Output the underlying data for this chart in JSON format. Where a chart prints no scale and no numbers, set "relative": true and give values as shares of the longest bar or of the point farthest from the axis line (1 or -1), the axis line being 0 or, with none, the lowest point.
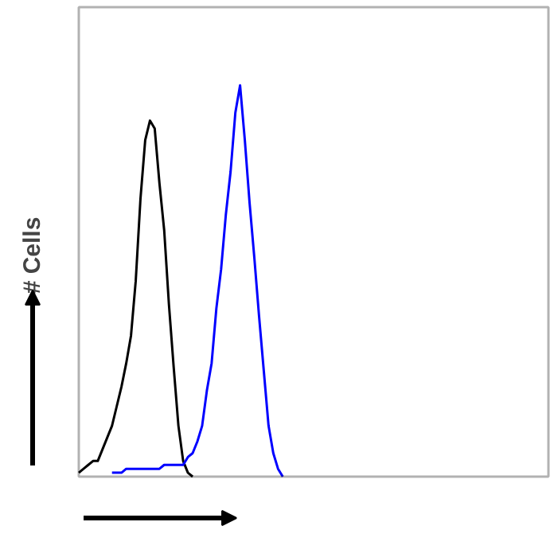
{
  "chart_data": {
    "type": "line",
    "relative": true,
    "ylabel": "# Cells",
    "grid": false,
    "marker": "none",
    "line_style": "solid",
    "categories": [
      null,
      null,
      null,
      null,
      null,
      null,
      null,
      null,
      null,
      null,
      null,
      null,
      null,
      null,
      null,
      null,
      null,
      null,
      null,
      null,
      null,
      null,
      null,
      null,
      null,
      null,
      null,
      null,
      null,
      null,
      null,
      null,
      null,
      null,
      null,
      null,
      null,
      null,
      null,
      null,
      null,
      null,
      null,
      null,
      null,
      null,
      null,
      null,
      null,
      null,
      null,
      null,
      null,
      null,
      null,
      null,
      null,
      null,
      null,
      null,
      null,
      null,
      null,
      null,
      null,
      null,
      null,
      null,
      null,
      null,
      null,
      null,
      null,
      null,
      null,
      null,
      null,
      null,
      null,
      null,
      null,
      null,
      null,
      null,
      null,
      null,
      null,
      null,
      null,
      null,
      null,
      null,
      null,
      null,
      null,
      null,
      null,
      null,
      null,
      null
    ],
    "series": [
      {
        "color": "#000000",
        "values": [
          0.01,
          0.02,
          0.03,
          0.04,
          0.04,
          0.07,
          0.1,
          0.13,
          0.18,
          0.23,
          0.29,
          0.36,
          0.5,
          0.71,
          0.86,
          0.91,
          0.89,
          0.75,
          0.63,
          0.44,
          0.28,
          0.13,
          0.04,
          0.01,
          0.0,
          null,
          null,
          null,
          null,
          null,
          null,
          null,
          null,
          null,
          null,
          null,
          null,
          null,
          null,
          null,
          null,
          null,
          null,
          null,
          null,
          null,
          null,
          null,
          null,
          null,
          null,
          null,
          null,
          null,
          null,
          null,
          null,
          null,
          null,
          null,
          null,
          null,
          null,
          null,
          null,
          null,
          null,
          null,
          null,
          null,
          null,
          null,
          null,
          null,
          null,
          null,
          null,
          null,
          null,
          null,
          null,
          null,
          null,
          null,
          null,
          null,
          null,
          null,
          null,
          null,
          null,
          null,
          null,
          null,
          null,
          null,
          null,
          null,
          null,
          null
        ]
      },
      {
        "color": "#0000ff",
        "values": [
          null,
          null,
          null,
          null,
          null,
          null,
          null,
          0.01,
          0.01,
          0.01,
          0.02,
          0.02,
          0.02,
          0.02,
          0.02,
          0.02,
          0.02,
          0.02,
          0.03,
          0.03,
          0.03,
          0.03,
          0.03,
          0.05,
          0.06,
          0.09,
          0.13,
          0.22,
          0.29,
          0.43,
          0.53,
          0.67,
          0.78,
          0.93,
          1.0,
          0.86,
          0.7,
          0.56,
          0.41,
          0.27,
          0.13,
          0.06,
          0.02,
          0.0,
          null,
          null,
          null,
          null,
          null,
          null,
          null,
          null,
          null,
          null,
          null,
          null,
          null,
          null,
          null,
          null,
          null,
          null,
          null,
          null,
          null,
          null,
          null,
          null,
          null,
          null,
          null,
          null,
          null,
          null,
          null,
          null,
          null,
          null,
          null,
          null,
          null,
          null,
          null,
          null,
          null,
          null,
          null,
          null,
          null,
          null,
          null,
          null,
          null,
          null,
          null,
          null,
          null,
          null,
          null,
          null
        ]
      }
    ]
  }
}
